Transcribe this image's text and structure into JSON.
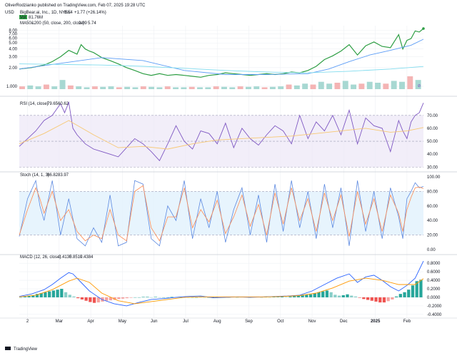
{
  "header": {
    "publisher": "OliverRodzianko published on TradingView.com, Feb 07, 2025 19:28 UTC",
    "currency": "USD",
    "symbol": "BigBear.ai, Inc., 1D, NYSE",
    "last_price": "8.54",
    "change": "+1.77 (+26.14%)",
    "volume_label": "Vol",
    "volume_value": "81.76M"
  },
  "footer": {
    "brand": "TradingView"
  },
  "colors": {
    "price": "#2e9e44",
    "ma50": "#5b9cf6",
    "ma200": "#82dcee",
    "rsi": "#7e57c2",
    "rsi_ma": "#f7c873",
    "k": "#5b88e0",
    "d": "#ff8a50",
    "macd": "#2962ff",
    "signal": "#ff9800",
    "hist_up": "#26a69a",
    "hist_down": "#ef5350"
  },
  "chart_data": [
    {
      "type": "line",
      "panel": "price",
      "title": "MA50&200 (50, close, 200, close)",
      "legend_values": [
        "2.09",
        "5.74"
      ],
      "x_tick_labels": [
        "2",
        "Mar",
        "Apr",
        "May",
        "Jun",
        "Jul",
        "Aug",
        "Sep",
        "Oct",
        "Nov",
        "Dec",
        "2025",
        "Feb"
      ],
      "y_scale": "log",
      "y_tick_labels": [
        "1.000",
        "2.00",
        "3.00",
        "4.00",
        "5.00",
        "6.00",
        "7.00",
        "8.00"
      ],
      "ylim": [
        0.9,
        9.5
      ],
      "series": [
        {
          "role": "price",
          "x": [
            0,
            3,
            6,
            8,
            10,
            12,
            14,
            15,
            16,
            17,
            18,
            19,
            20,
            22,
            24,
            26,
            28,
            30,
            32,
            34,
            36,
            38,
            40,
            42,
            44,
            46,
            48,
            50,
            52,
            54,
            56,
            58,
            60,
            62,
            64,
            66,
            68,
            70,
            72,
            74,
            76,
            78,
            80,
            82,
            84,
            86,
            88,
            90,
            92,
            93,
            94,
            95,
            96,
            97,
            98
          ],
          "y": [
            1.9,
            2.0,
            2.2,
            2.5,
            3.0,
            3.8,
            3.3,
            4.7,
            4.0,
            3.7,
            3.5,
            3.2,
            2.9,
            2.6,
            2.3,
            2.0,
            1.8,
            1.6,
            1.5,
            1.6,
            1.5,
            1.55,
            1.5,
            1.45,
            1.4,
            1.5,
            1.55,
            1.65,
            1.6,
            1.55,
            1.5,
            1.55,
            1.6,
            1.55,
            1.6,
            1.7,
            1.65,
            1.8,
            2.1,
            2.7,
            3.1,
            3.7,
            4.7,
            3.2,
            4.5,
            5.2,
            4.4,
            4.2,
            6.8,
            4.0,
            5.5,
            5.9,
            7.8,
            7.5,
            8.54
          ]
        },
        {
          "role": "ma50",
          "x": [
            0,
            20,
            30,
            40,
            50,
            60,
            70,
            75,
            80,
            85,
            90,
            95,
            98
          ],
          "y": [
            1.9,
            2.9,
            2.6,
            1.8,
            1.55,
            1.55,
            1.6,
            1.9,
            2.5,
            3.2,
            3.8,
            4.6,
            5.74
          ]
        },
        {
          "role": "ma200",
          "x": [
            0,
            20,
            30,
            40,
            50,
            60,
            70,
            80,
            90,
            98
          ],
          "y": [
            2.3,
            2.2,
            2.1,
            1.95,
            1.8,
            1.7,
            1.65,
            1.75,
            1.9,
            2.09
          ]
        }
      ],
      "volume": [
        0.3,
        0.4,
        0.3,
        0.5,
        0.3,
        1.0,
        0.4,
        0.3,
        0.2,
        0.3,
        0.25,
        0.3,
        0.2,
        0.25,
        0.2,
        0.3,
        0.25,
        0.2,
        0.3,
        0.2,
        0.2,
        0.25,
        0.2,
        0.2,
        0.3,
        0.25,
        0.2,
        0.3,
        0.25,
        0.3,
        0.2,
        0.25,
        0.3,
        0.5,
        0.4,
        0.6,
        0.5,
        0.8,
        0.6,
        0.7,
        0.9,
        0.5,
        0.6,
        0.8,
        0.7,
        0.6,
        0.9,
        0.8,
        1.4,
        1.0
      ]
    },
    {
      "type": "line",
      "panel": "rsi",
      "title": "RSI (14, close)",
      "legend_values": [
        "79.65",
        "60.62"
      ],
      "y_tick_labels": [
        "30.00",
        "40.00",
        "50.00",
        "60.00",
        "70.00"
      ],
      "ylim": [
        28,
        82
      ],
      "bands": [
        30,
        50,
        70
      ],
      "series": [
        {
          "role": "rsi",
          "x": [
            0,
            2,
            4,
            6,
            8,
            10,
            11,
            12,
            13,
            14,
            16,
            18,
            20,
            22,
            24,
            26,
            28,
            30,
            32,
            34,
            36,
            38,
            40,
            42,
            44,
            46,
            48,
            50,
            52,
            54,
            56,
            58,
            60,
            62,
            64,
            66,
            68,
            70,
            72,
            74,
            76,
            78,
            80,
            82,
            84,
            86,
            88,
            90,
            92,
            93,
            94,
            95,
            96,
            97,
            98
          ],
          "y": [
            46,
            52,
            58,
            66,
            70,
            79,
            72,
            80,
            60,
            55,
            48,
            44,
            42,
            40,
            38,
            45,
            52,
            48,
            42,
            35,
            48,
            62,
            50,
            44,
            58,
            56,
            48,
            64,
            45,
            60,
            52,
            47,
            55,
            62,
            58,
            48,
            70,
            52,
            65,
            58,
            70,
            55,
            74,
            48,
            68,
            62,
            60,
            42,
            66,
            58,
            52,
            65,
            70,
            72,
            79.65
          ]
        },
        {
          "role": "rsi_ma",
          "x": [
            0,
            6,
            12,
            18,
            24,
            30,
            36,
            42,
            48,
            54,
            60,
            66,
            72,
            78,
            84,
            90,
            94,
            98
          ],
          "y": [
            48,
            56,
            66,
            55,
            45,
            46,
            44,
            48,
            51,
            52,
            53,
            54,
            56,
            58,
            60,
            57,
            58,
            60.62
          ]
        }
      ]
    },
    {
      "type": "line",
      "panel": "stoch",
      "title": "Stoch (14, 1, 3)",
      "legend_values": [
        "86.82",
        "83.97"
      ],
      "y_tick_labels": [
        "0.00",
        "20.00",
        "40.00",
        "60.00",
        "80.00",
        "100.00"
      ],
      "ylim": [
        -3,
        103
      ],
      "bands": [
        20,
        80
      ],
      "series": [
        {
          "role": "k",
          "x": [
            0,
            2,
            4,
            5,
            6,
            8,
            10,
            12,
            14,
            16,
            18,
            20,
            22,
            24,
            26,
            28,
            30,
            32,
            34,
            36,
            38,
            40,
            42,
            44,
            46,
            48,
            50,
            52,
            54,
            56,
            58,
            60,
            62,
            64,
            66,
            68,
            70,
            72,
            74,
            76,
            78,
            80,
            82,
            84,
            86,
            88,
            90,
            92,
            93,
            94,
            95,
            96,
            97,
            98
          ],
          "y": [
            18,
            70,
            95,
            60,
            40,
            95,
            20,
            70,
            15,
            5,
            30,
            10,
            75,
            5,
            10,
            95,
            90,
            15,
            5,
            60,
            40,
            95,
            15,
            70,
            30,
            80,
            10,
            55,
            85,
            20,
            75,
            10,
            90,
            25,
            95,
            30,
            80,
            15,
            90,
            30,
            85,
            5,
            95,
            25,
            80,
            15,
            85,
            45,
            15,
            70,
            80,
            92,
            85,
            86.82
          ]
        },
        {
          "role": "d",
          "x": [
            0,
            2,
            4,
            5,
            6,
            8,
            10,
            12,
            14,
            16,
            18,
            20,
            22,
            24,
            26,
            28,
            30,
            32,
            34,
            36,
            38,
            40,
            42,
            44,
            46,
            48,
            50,
            52,
            54,
            56,
            58,
            60,
            62,
            64,
            66,
            68,
            70,
            72,
            74,
            76,
            78,
            80,
            82,
            84,
            86,
            88,
            90,
            92,
            93,
            94,
            95,
            96,
            97,
            98
          ],
          "y": [
            20,
            55,
            85,
            70,
            50,
            80,
            40,
            55,
            25,
            12,
            20,
            15,
            55,
            20,
            12,
            80,
            88,
            30,
            12,
            45,
            45,
            85,
            30,
            55,
            38,
            68,
            22,
            45,
            75,
            32,
            62,
            20,
            78,
            35,
            85,
            40,
            70,
            25,
            78,
            40,
            75,
            18,
            80,
            35,
            70,
            25,
            75,
            50,
            25,
            55,
            72,
            85,
            86,
            83.97
          ]
        }
      ]
    },
    {
      "type": "bar",
      "panel": "macd",
      "title": "MACD (12, 26, close)",
      "legend_values": [
        "0.4135",
        "0.8519",
        "0.4384"
      ],
      "y_tick_labels": [
        "-0.4000",
        "-0.2000",
        "0.0000",
        "0.2000",
        "0.4000",
        "0.6000",
        "0.8000"
      ],
      "ylim": [
        -0.47,
        0.92
      ],
      "series": [
        {
          "role": "macd",
          "x": [
            0,
            3,
            6,
            8,
            10,
            12,
            13,
            15,
            17,
            20,
            23,
            26,
            29,
            32,
            35,
            38,
            41,
            44,
            47,
            50,
            53,
            56,
            59,
            62,
            65,
            68,
            71,
            74,
            77,
            80,
            82,
            84,
            86,
            88,
            90,
            92,
            94,
            96,
            97,
            98
          ],
          "y": [
            0.02,
            0.08,
            0.18,
            0.3,
            0.45,
            0.58,
            0.55,
            0.35,
            0.15,
            -0.05,
            -0.15,
            -0.2,
            -0.12,
            -0.05,
            -0.03,
            0.0,
            0.02,
            0.03,
            -0.01,
            0.0,
            0.01,
            0.0,
            0.01,
            0.02,
            0.03,
            0.05,
            0.15,
            0.3,
            0.45,
            0.55,
            0.35,
            0.48,
            0.52,
            0.4,
            0.25,
            0.15,
            0.28,
            0.45,
            0.65,
            0.8519
          ]
        },
        {
          "role": "signal",
          "x": [
            0,
            4,
            8,
            12,
            14,
            17,
            20,
            24,
            28,
            32,
            36,
            40,
            44,
            48,
            52,
            56,
            60,
            64,
            68,
            72,
            76,
            80,
            84,
            88,
            92,
            96,
            98
          ],
          "y": [
            0.01,
            0.05,
            0.18,
            0.38,
            0.45,
            0.35,
            0.1,
            -0.08,
            -0.15,
            -0.1,
            -0.05,
            0.0,
            0.01,
            0.01,
            0.01,
            0.01,
            0.01,
            0.02,
            0.04,
            0.1,
            0.22,
            0.38,
            0.45,
            0.4,
            0.3,
            0.3,
            0.4384
          ]
        }
      ],
      "histogram": [
        0.0,
        0.02,
        0.04,
        0.05,
        0.08,
        0.1,
        0.12,
        0.14,
        0.16,
        0.18,
        0.2,
        0.12,
        0.06,
        0.02,
        -0.02,
        -0.05,
        -0.08,
        -0.11,
        -0.13,
        -0.12,
        -0.1,
        -0.08,
        -0.07,
        -0.06,
        -0.04,
        -0.03,
        -0.02,
        -0.01,
        0.0,
        0.0,
        0.01,
        0.01,
        0.0,
        0.01,
        0.0,
        0.0,
        0.0,
        0.01,
        0.0,
        0.01,
        0.0,
        0.0,
        0.0,
        0.0,
        0.01,
        0.0,
        0.0,
        0.01,
        0.01,
        0.0,
        0.01,
        0.0,
        0.01,
        0.0,
        0.01,
        0.01,
        0.0,
        0.01,
        0.01,
        0.0,
        0.01,
        0.0,
        0.01,
        0.01,
        0.02,
        0.01,
        0.02,
        0.03,
        0.04,
        0.05,
        0.06,
        0.07,
        0.1,
        0.12,
        0.14,
        0.16,
        0.12,
        0.06,
        0.04,
        0.05,
        0.07,
        0.04,
        0.02,
        -0.01,
        -0.04,
        -0.06,
        -0.08,
        -0.1,
        -0.12,
        -0.12,
        -0.09,
        -0.05,
        0.02,
        0.08,
        0.12,
        0.18,
        0.28,
        0.38,
        0.4135
      ]
    }
  ]
}
